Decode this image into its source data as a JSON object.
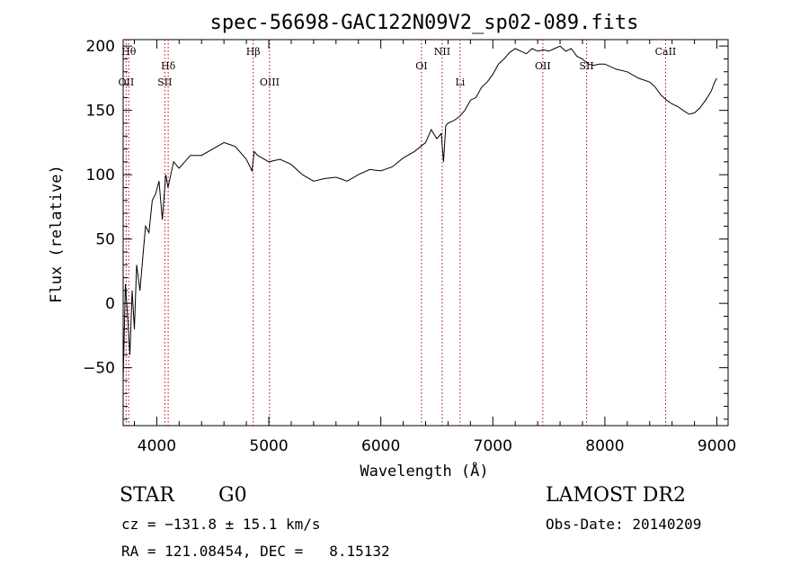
{
  "chart_data": {
    "type": "line",
    "title": "spec-56698-GAC122N09V2_sp02-089.fits",
    "xlabel": "Wavelength (Å)",
    "ylabel": "Flux (relative)",
    "xlim": [
      3700,
      9100
    ],
    "ylim": [
      -95,
      205
    ],
    "x_ticks": [
      4000,
      5000,
      6000,
      7000,
      8000,
      9000
    ],
    "x_tick_labels": [
      "4000",
      "5000",
      "6000",
      "7000",
      "8000",
      "9000"
    ],
    "y_ticks": [
      -50,
      0,
      50,
      100,
      150,
      200
    ],
    "y_tick_labels": [
      "−50",
      "0",
      "50",
      "100",
      "150",
      "200"
    ],
    "series": [
      {
        "x": [
          3700,
          3720,
          3740,
          3760,
          3780,
          3800,
          3820,
          3850,
          3880,
          3900,
          3930,
          3960,
          3990,
          4020,
          4050,
          4080,
          4100,
          4150,
          4200,
          4300,
          4400,
          4500,
          4600,
          4700,
          4800,
          4850,
          4870,
          4900,
          5000,
          5100,
          5200,
          5300,
          5400,
          5500,
          5600,
          5700,
          5800,
          5900,
          6000,
          6100,
          6200,
          6300,
          6400,
          6450,
          6500,
          6540,
          6560,
          6580,
          6600,
          6650,
          6700,
          6750,
          6800,
          6850,
          6900,
          6950,
          7000,
          7050,
          7100,
          7150,
          7200,
          7250,
          7300,
          7350,
          7400,
          7450,
          7500,
          7550,
          7600,
          7650,
          7700,
          7750,
          7800,
          7850,
          7900,
          7950,
          8000,
          8100,
          8200,
          8300,
          8400,
          8450,
          8500,
          8550,
          8600,
          8650,
          8700,
          8750,
          8800,
          8850,
          8900,
          8950,
          8980,
          9000
        ],
        "y": [
          -60,
          15,
          -10,
          -40,
          10,
          -20,
          30,
          10,
          40,
          60,
          55,
          80,
          85,
          95,
          65,
          100,
          90,
          110,
          105,
          115,
          115,
          120,
          125,
          122,
          112,
          103,
          118,
          115,
          110,
          112,
          108,
          100,
          95,
          97,
          98,
          95,
          100,
          104,
          103,
          106,
          113,
          118,
          125,
          135,
          128,
          132,
          110,
          138,
          140,
          142,
          145,
          150,
          158,
          160,
          168,
          172,
          178,
          186,
          190,
          195,
          198,
          196,
          194,
          198,
          196,
          197,
          196,
          198,
          200,
          196,
          198,
          192,
          190,
          186,
          185,
          186,
          186,
          182,
          180,
          175,
          172,
          168,
          162,
          158,
          155,
          153,
          150,
          147,
          148,
          152,
          158,
          165,
          172,
          175
        ]
      }
    ],
    "line_color": "#000000",
    "grid": false,
    "line_markers": [
      {
        "wave": 3750,
        "label": "Hθ",
        "row": 1
      },
      {
        "wave": 3727,
        "label": "OII",
        "row": 3
      },
      {
        "wave": 4102,
        "label": "Hδ",
        "row": 2
      },
      {
        "wave": 4072,
        "label": "SII",
        "row": 3
      },
      {
        "wave": 4861,
        "label": "Hβ",
        "row": 1
      },
      {
        "wave": 5007,
        "label": "OIII",
        "row": 3
      },
      {
        "wave": 6363,
        "label": "OI",
        "row": 2
      },
      {
        "wave": 6548,
        "label": "NII",
        "row": 1
      },
      {
        "wave": 6708,
        "label": "Li",
        "row": 3
      },
      {
        "wave": 7446,
        "label": "OII",
        "row": 2
      },
      {
        "wave": 7837,
        "label": "SII",
        "row": 2
      },
      {
        "wave": 8542,
        "label": "CaII",
        "row": 1
      }
    ],
    "marker_color": "#b30000"
  },
  "footer": {
    "object_class": "STAR",
    "subclass": "G0",
    "survey": "LAMOST DR2",
    "cz": "cz = −131.8 ± 15.1 km/s",
    "obs_date": "Obs-Date: 20140209",
    "radec": "RA = 121.08454, DEC =   8.15132"
  }
}
